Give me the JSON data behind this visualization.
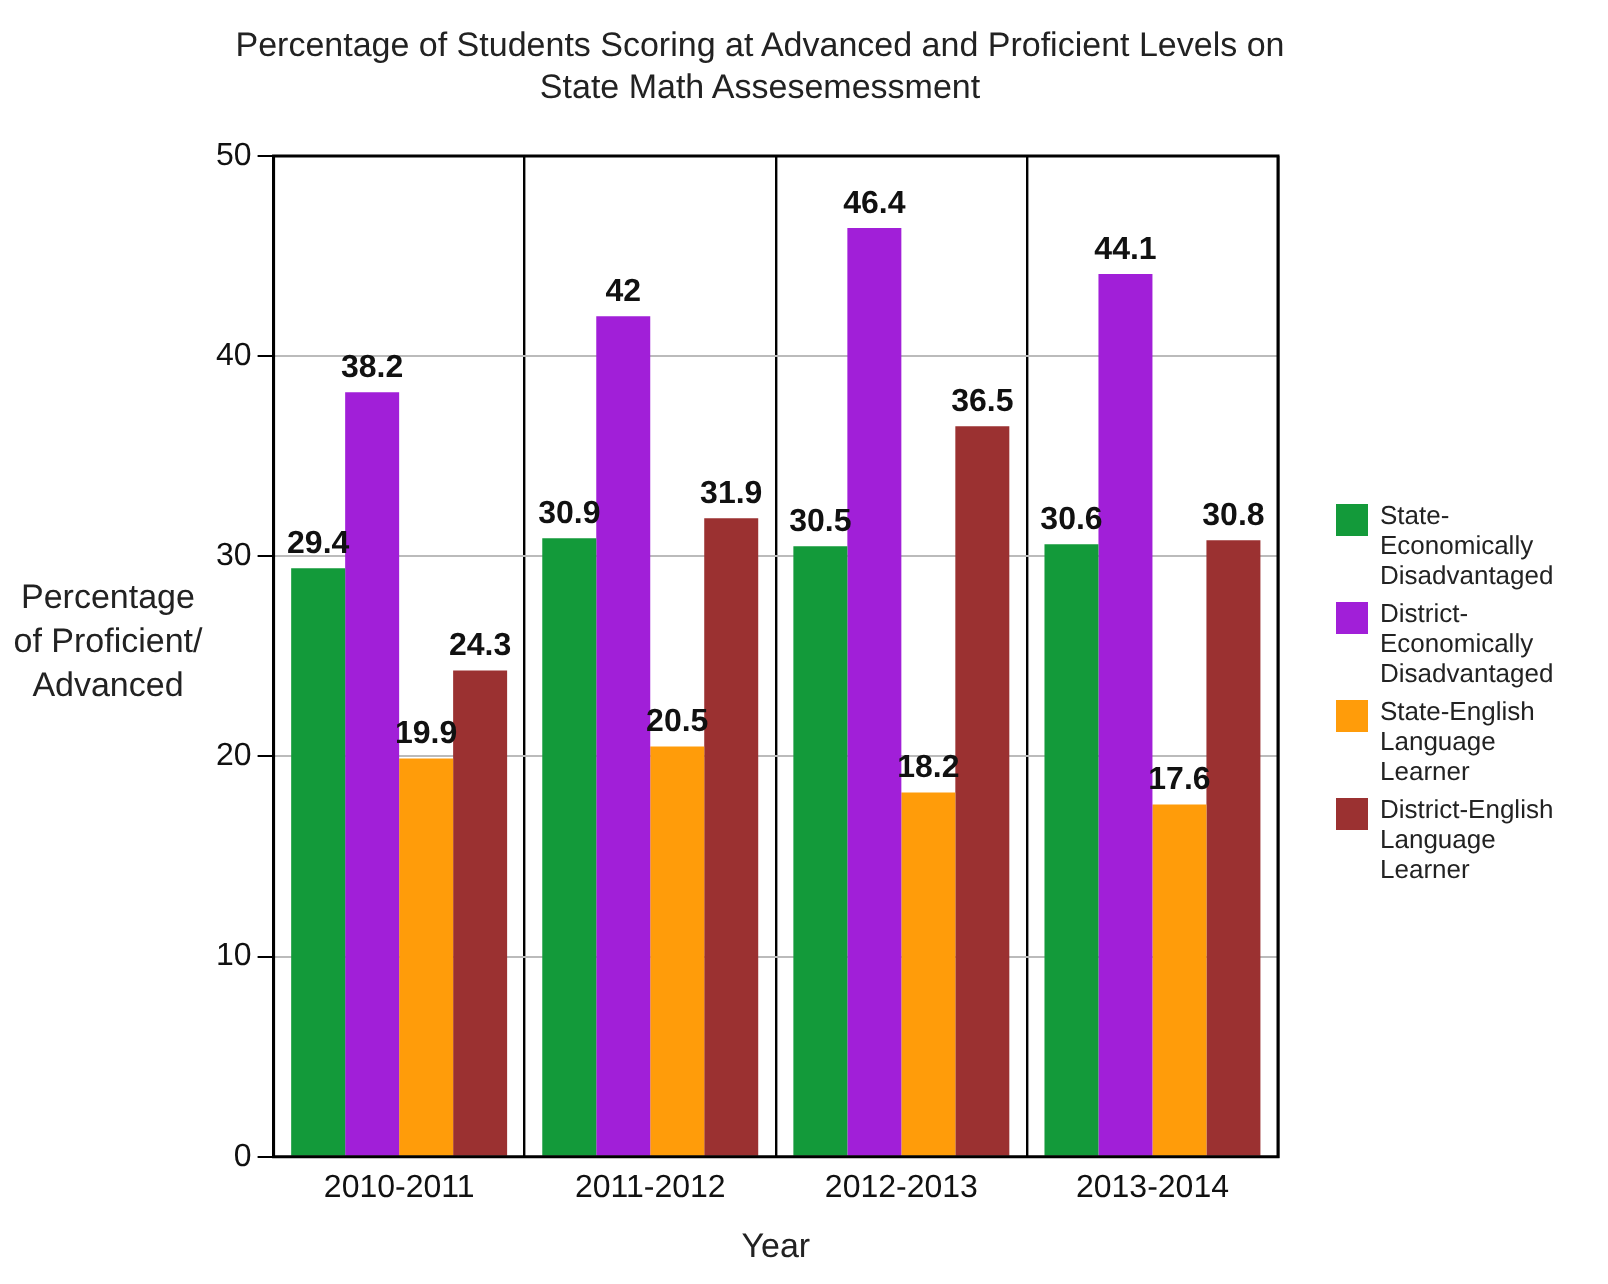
{
  "chart_data": {
    "type": "bar",
    "title": "Percentage of Students Scoring at Advanced and Proficient Levels on State Math Assesemessment",
    "xlabel": "Year",
    "ylabel": "Percentage of Proficient/ Advanced",
    "categories": [
      "2010-2011",
      "2011-2012",
      "2012-2013",
      "2013-2014"
    ],
    "series": [
      {
        "name": "State-Economically Disadvantaged",
        "color": "#139a3a",
        "values": [
          29.4,
          30.9,
          30.5,
          30.6
        ]
      },
      {
        "name": "District-Economically Disadvantaged",
        "color": "#a11fd8",
        "values": [
          38.2,
          42,
          46.4,
          44.1
        ]
      },
      {
        "name": "State-English Language Learner",
        "color": "#ff9c0a",
        "values": [
          19.9,
          20.5,
          18.2,
          17.6
        ]
      },
      {
        "name": "District-English Language Learner",
        "color": "#9b3131",
        "values": [
          24.3,
          31.9,
          36.5,
          30.8
        ]
      }
    ],
    "ylim": [
      0,
      50
    ],
    "yticks": [
      0,
      10,
      20,
      30,
      40,
      50
    ],
    "grid": true,
    "legend": "right",
    "data_labels": true
  }
}
